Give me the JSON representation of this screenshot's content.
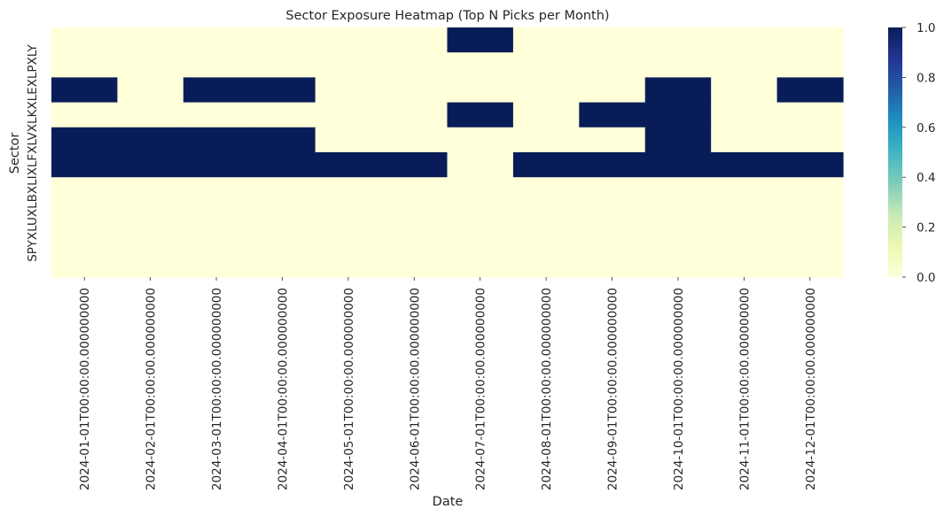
{
  "chart_data": {
    "type": "heatmap",
    "title": "Sector Exposure Heatmap (Top N Picks per Month)",
    "xlabel": "Date",
    "ylabel": "Sector",
    "x_categories": [
      "2024-01-01T00:00:00.000000000",
      "2024-02-01T00:00:00.000000000",
      "2024-03-01T00:00:00.000000000",
      "2024-04-01T00:00:00.000000000",
      "2024-05-01T00:00:00.000000000",
      "2024-06-01T00:00:00.000000000",
      "2024-07-01T00:00:00.000000000",
      "2024-08-01T00:00:00.000000000",
      "2024-09-01T00:00:00.000000000",
      "2024-10-01T00:00:00.000000000",
      "2024-11-01T00:00:00.000000000",
      "2024-12-01T00:00:00.000000000"
    ],
    "y_categories": [
      "XLY",
      "XLP",
      "XLE",
      "XLK",
      "XLV",
      "XLF",
      "XLI",
      "XLB",
      "XLU",
      "SPY"
    ],
    "values": [
      [
        0,
        0,
        0,
        0,
        0,
        0,
        1,
        0,
        0,
        0,
        0,
        0
      ],
      [
        0,
        0,
        0,
        0,
        0,
        0,
        0,
        0,
        0,
        0,
        0,
        0
      ],
      [
        1,
        0,
        1,
        1,
        0,
        0,
        0,
        0,
        0,
        1,
        0,
        1
      ],
      [
        0,
        0,
        0,
        0,
        0,
        0,
        1,
        0,
        1,
        1,
        0,
        0
      ],
      [
        1,
        1,
        1,
        1,
        0,
        0,
        0,
        0,
        0,
        1,
        0,
        0
      ],
      [
        1,
        1,
        1,
        1,
        1,
        1,
        0,
        1,
        1,
        1,
        1,
        1
      ],
      [
        0,
        0,
        0,
        0,
        0,
        0,
        0,
        0,
        0,
        0,
        0,
        0
      ],
      [
        0,
        0,
        0,
        0,
        0,
        0,
        0,
        0,
        0,
        0,
        0,
        0
      ],
      [
        0,
        0,
        0,
        0,
        0,
        0,
        0,
        0,
        0,
        0,
        0,
        0
      ],
      [
        0,
        0,
        0,
        0,
        0,
        0,
        0,
        0,
        0,
        0,
        0,
        0
      ]
    ],
    "colormap": "YlGnBu",
    "colorbar": {
      "vmin": 0,
      "vmax": 1,
      "ticks": [
        "0.0",
        "0.2",
        "0.4",
        "0.6",
        "0.8",
        "1.0"
      ]
    },
    "colors": {
      "low": "#ffffd9",
      "high": "#081d58",
      "text": "#262626"
    },
    "grid": false
  }
}
